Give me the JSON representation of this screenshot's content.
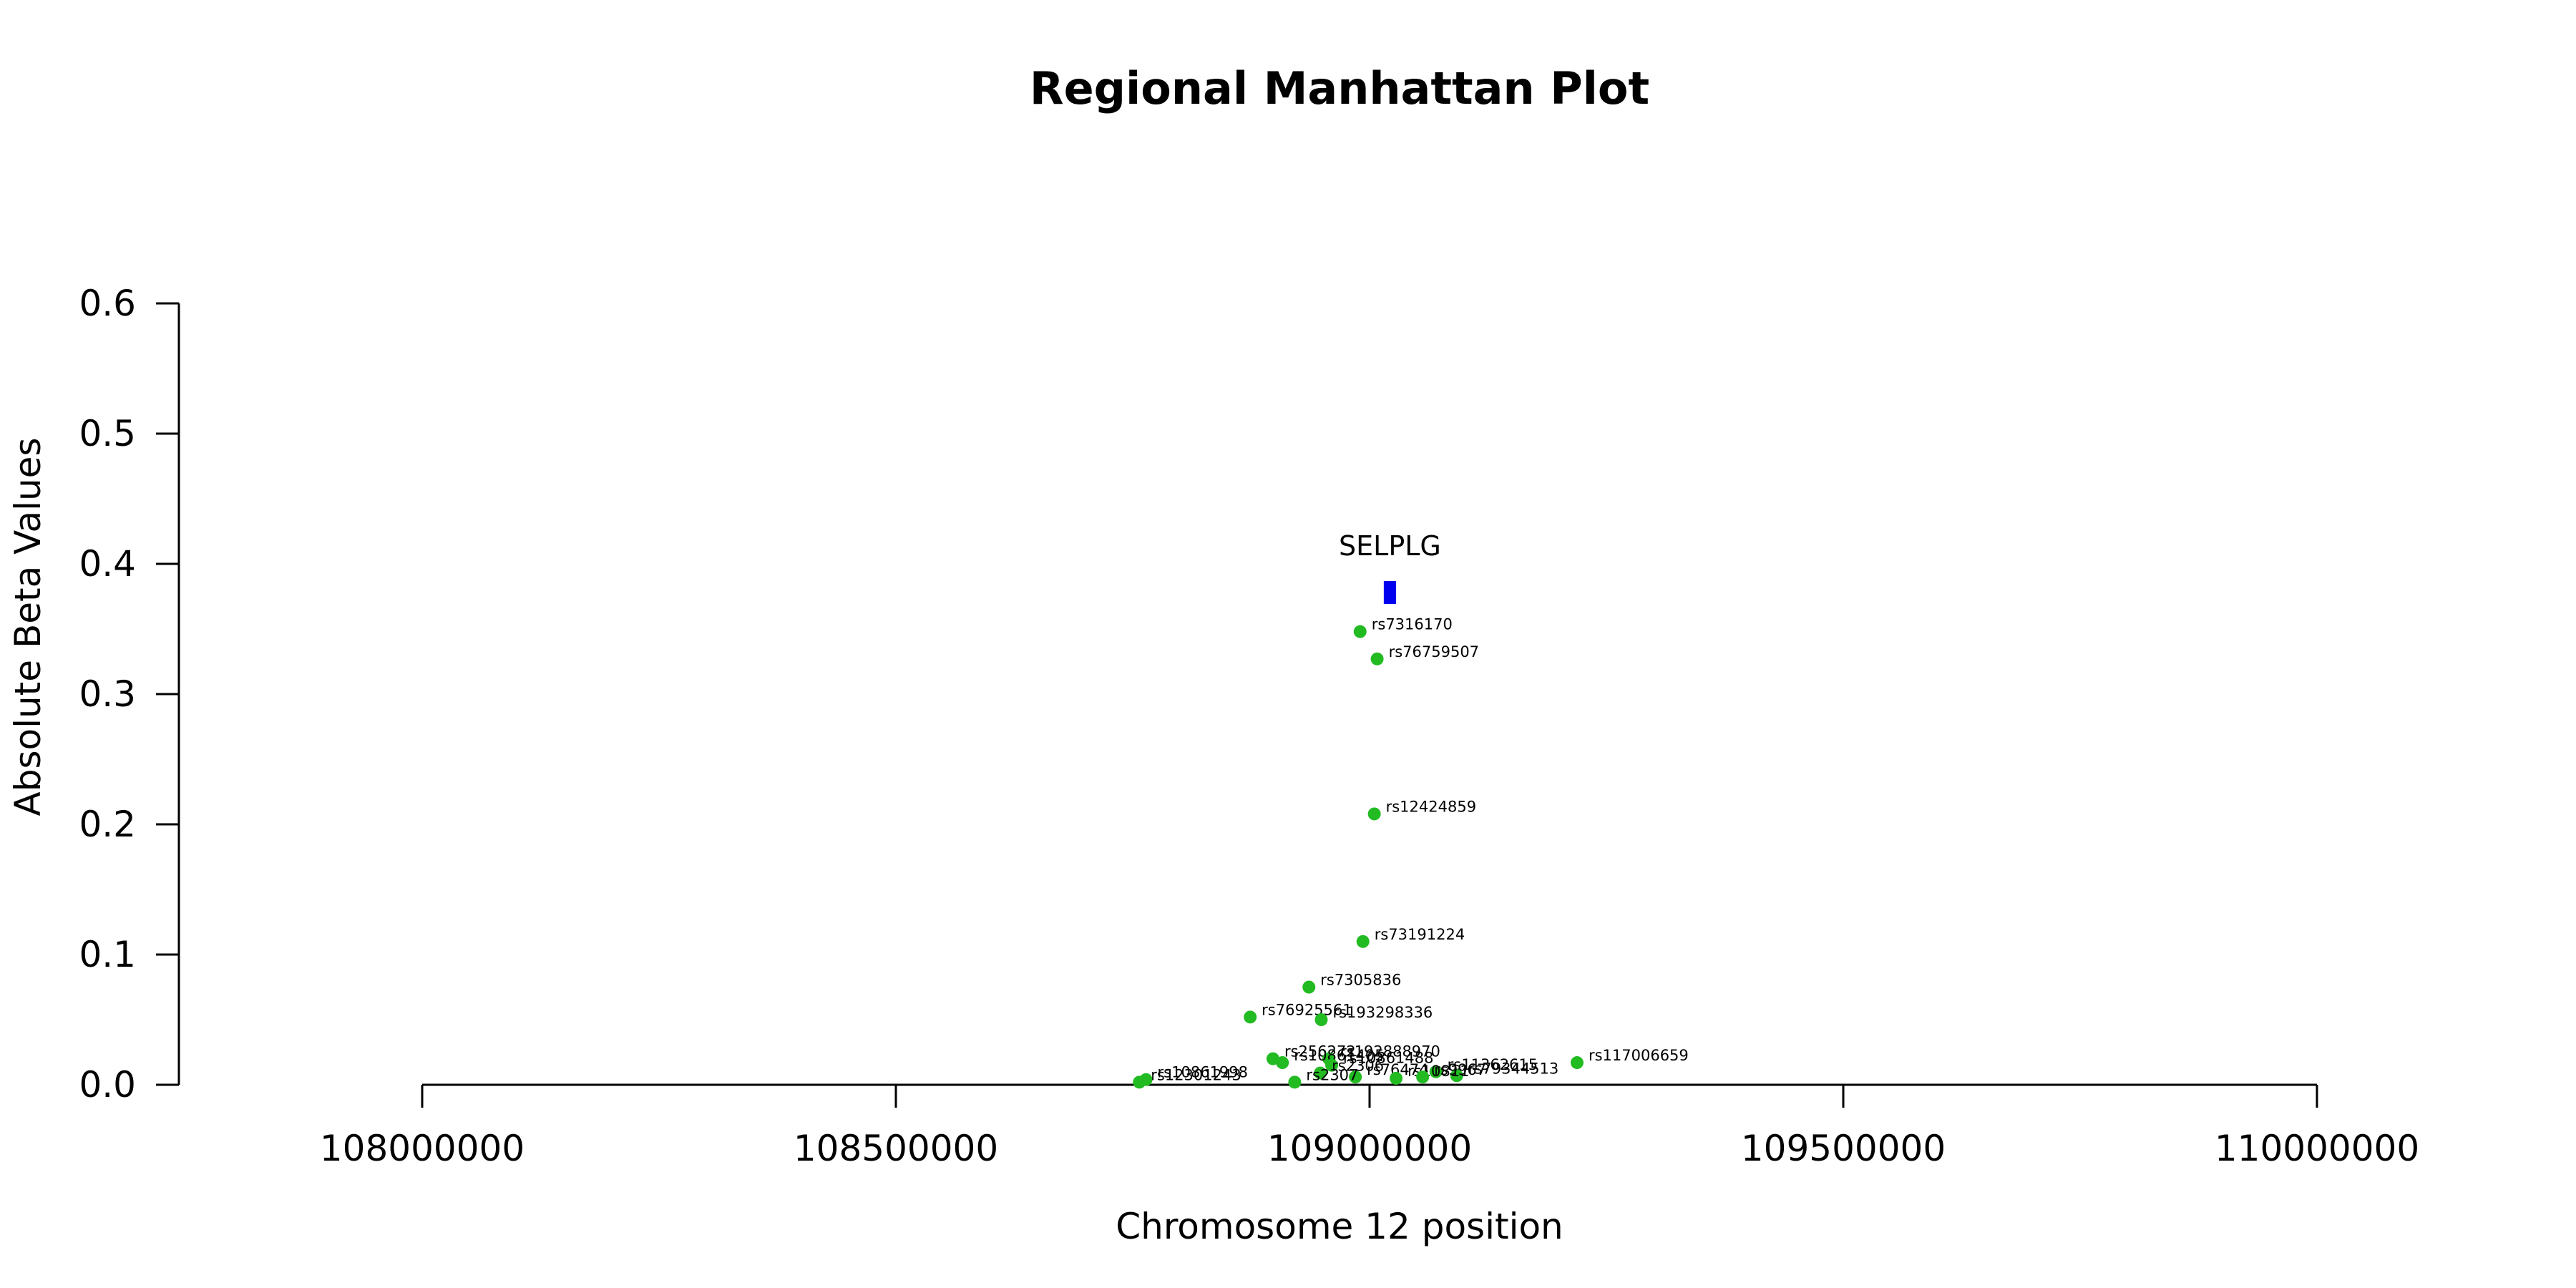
{
  "chart_data": {
    "type": "scatter",
    "title": "Regional Manhattan Plot",
    "xlabel": "Chromosome 12 position",
    "ylabel": "Absolute Beta Values",
    "xlim": [
      108000000,
      110000000
    ],
    "ylim": [
      0,
      0.6
    ],
    "x_ticks": [
      108000000,
      108500000,
      109000000,
      109500000,
      110000000
    ],
    "y_ticks": [
      0.0,
      0.1,
      0.2,
      0.3,
      0.4,
      0.5,
      0.6
    ],
    "x_tick_labels": [
      "108000000",
      "108500000",
      "109000000",
      "109500000",
      "110000000"
    ],
    "y_tick_labels": [
      "0.0",
      "0.1",
      "0.2",
      "0.3",
      "0.4",
      "0.5",
      "0.6"
    ],
    "point_color": "#22bb22",
    "gene_color": "#0000ee",
    "genes": [
      {
        "name": "SELPLG",
        "start": 109015000,
        "end": 109028000,
        "y": 0.378
      }
    ],
    "points": [
      {
        "label": "rs7316170",
        "x": 108990000,
        "y": 0.348
      },
      {
        "label": "rs76759507",
        "x": 109008000,
        "y": 0.327
      },
      {
        "label": "rs12424859",
        "x": 109005000,
        "y": 0.208
      },
      {
        "label": "rs73191224",
        "x": 108993000,
        "y": 0.11
      },
      {
        "label": "rs7305836",
        "x": 108936000,
        "y": 0.075
      },
      {
        "label": "rs76925561",
        "x": 108874000,
        "y": 0.052
      },
      {
        "label": "rs193298336",
        "x": 108949000,
        "y": 0.05
      },
      {
        "label": "rs256272",
        "x": 108898000,
        "y": 0.02
      },
      {
        "label": "rs192888970",
        "x": 108957000,
        "y": 0.02
      },
      {
        "label": "rs10861405",
        "x": 108908000,
        "y": 0.017
      },
      {
        "label": "rs10861488",
        "x": 108960000,
        "y": 0.015
      },
      {
        "label": "rs117006659",
        "x": 109219000,
        "y": 0.017
      },
      {
        "label": "rs11362615",
        "x": 109070000,
        "y": 0.01
      },
      {
        "label": "rs79344513",
        "x": 109092000,
        "y": 0.007
      },
      {
        "label": "rs2306",
        "x": 108948000,
        "y": 0.009
      },
      {
        "label": "rs76474",
        "x": 108985000,
        "y": 0.006
      },
      {
        "label": "rs10811",
        "x": 109028000,
        "y": 0.005
      },
      {
        "label": "rs9967",
        "x": 109056000,
        "y": 0.006
      },
      {
        "label": "rs10861998",
        "x": 108764000,
        "y": 0.004
      },
      {
        "label": "rs12301243",
        "x": 108757000,
        "y": 0.002
      },
      {
        "label": "rs2307",
        "x": 108921000,
        "y": 0.002
      }
    ]
  }
}
